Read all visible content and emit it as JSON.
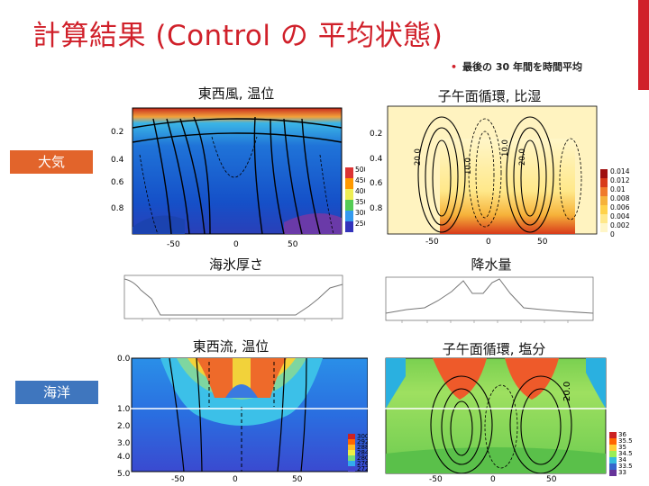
{
  "slide": {
    "title": "計算結果 (Control の 平均状態)",
    "note": "最後の 30 年間を時間平均"
  },
  "labels": {
    "uwind": "東西風, 温位",
    "merid_atm": "子午面循環, 比湿",
    "seaice": "海氷厚さ",
    "precip": "降水量",
    "ucurrent": "東西流, 温位",
    "merid_ocn": "子午面循環, 塩分"
  },
  "tags": {
    "atmosphere": "大気",
    "ocean": "海洋"
  },
  "colors": {
    "title_red": "#d0202a",
    "atm_tag": "#e2642b",
    "ocn_tag": "#3f76be"
  },
  "axes": {
    "lat_ticks": [
      "-50",
      "0",
      "50"
    ],
    "atm_p_ticks": [
      "0.2",
      "0.4",
      "0.6",
      "0.8"
    ],
    "ocn_depth_ticks": [
      "0.0",
      "1.0",
      "2.0",
      "3.0",
      "4.0",
      "5.0"
    ],
    "merid_contours": [
      "20.0",
      "10.0",
      "10.0",
      "20.0"
    ],
    "ocn_contour": "20.0"
  },
  "colorbars": {
    "uwind": [
      "500",
      "450",
      "400",
      "350",
      "300",
      "250"
    ],
    "merid_atm": [
      "0.014",
      "0.012",
      "0.01",
      "0.008",
      "0.006",
      "0.004",
      "0.002",
      "0"
    ],
    "ucurrent": [
      "300",
      "292",
      "288",
      "284",
      "280",
      "276",
      "272"
    ],
    "merid_ocn": [
      "36",
      "35.5",
      "35",
      "34.5",
      "34",
      "33.5",
      "33"
    ]
  }
}
